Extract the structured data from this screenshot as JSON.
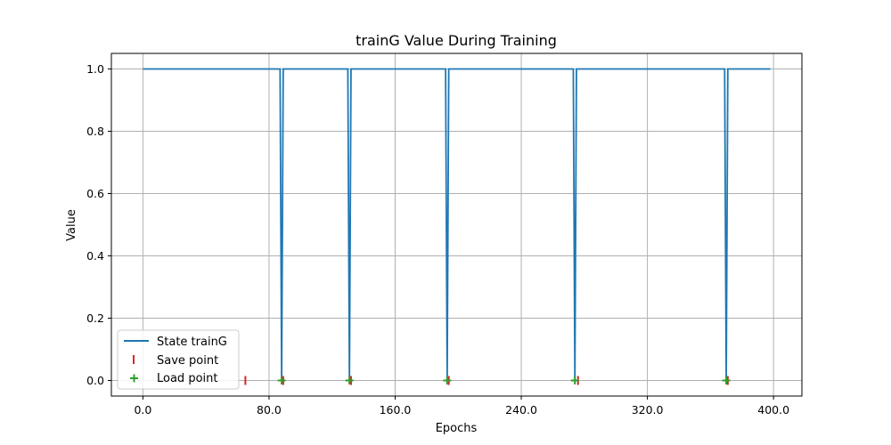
{
  "chart_data": {
    "type": "line",
    "title": "trainG Value During Training",
    "xlabel": "Epochs",
    "ylabel": "Value",
    "xlim": [
      -20,
      418
    ],
    "ylim": [
      -0.05,
      1.05
    ],
    "xticks": [
      0,
      80,
      160,
      240,
      320,
      400
    ],
    "xtick_labels": [
      "0.0",
      "80.0",
      "160.0",
      "240.0",
      "320.0",
      "400.0"
    ],
    "yticks": [
      0,
      0.2,
      0.4,
      0.6,
      0.8,
      1.0
    ],
    "ytick_labels": [
      "0.0",
      "0.2",
      "0.4",
      "0.6",
      "0.8",
      "1.0"
    ],
    "grid": true,
    "legend_position": "lower-left",
    "series": [
      {
        "name": "State trainG",
        "color": "#1f77b4",
        "x": [
          0,
          87,
          88,
          89,
          130,
          131,
          132,
          192,
          193,
          194,
          273,
          274,
          275,
          369,
          370,
          371,
          398
        ],
        "y": [
          1,
          1,
          0,
          1,
          1,
          0,
          1,
          1,
          0,
          1,
          1,
          0,
          1,
          1,
          0,
          1,
          1
        ]
      }
    ],
    "markers": [
      {
        "name": "Save point",
        "symbol": "vline",
        "color": "#d62728",
        "x": [
          65,
          89,
          132,
          194,
          276,
          371
        ],
        "y": [
          0,
          0,
          0,
          0,
          0,
          0
        ]
      },
      {
        "name": "Load point",
        "symbol": "plus",
        "color": "#2ca02c",
        "x": [
          88,
          131,
          193,
          274,
          370
        ],
        "y": [
          0,
          0,
          0,
          0,
          0
        ]
      }
    ]
  }
}
